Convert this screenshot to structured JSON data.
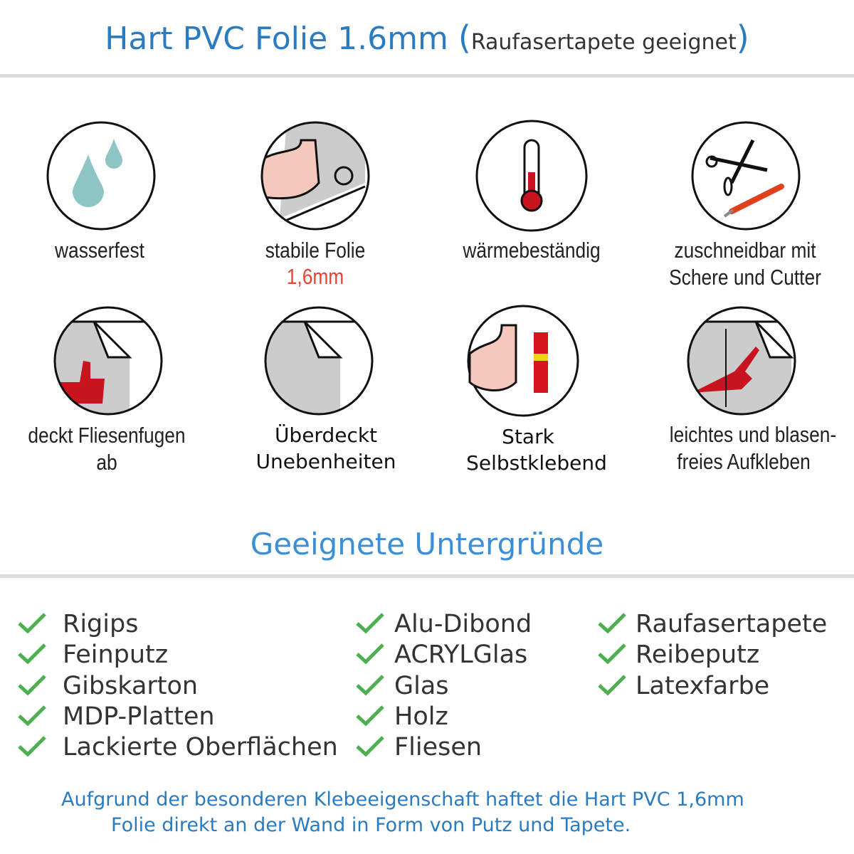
{
  "header": {
    "title_main": "Hart PVC Folie 1.6mm ",
    "paren_open": "(",
    "title_sub": "Raufasertapete geeignet",
    "paren_close": ")"
  },
  "features": [
    {
      "icon": "water-drops-icon",
      "label": "wasserfest"
    },
    {
      "icon": "strong-arm-foil-icon",
      "label": "stabile Folie",
      "sublabel": "1,6mm"
    },
    {
      "icon": "thermometer-icon",
      "label": "wärmebeständig"
    },
    {
      "icon": "scissors-cutter-icon",
      "label_line1": "zuschneidbar mit",
      "label_line2": "Schere und Cutter"
    },
    {
      "icon": "tile-thumbs-up-icon",
      "label": "deckt Fliesenfugen ab"
    },
    {
      "icon": "foil-corner-icon",
      "label_line1": "Überdeckt",
      "label_line2": "Unebenheiten"
    },
    {
      "icon": "strong-arm-glue-icon",
      "label_line1": "Stark",
      "label_line2": "Selbstklebend"
    },
    {
      "icon": "hand-apply-icon",
      "label_line1": "leichtes und blasen-",
      "label_line2": "freies Aufkleben"
    }
  ],
  "colors": {
    "accent": "#2a7bc0",
    "check": "#4caf50",
    "highlight": "#e8423a"
  },
  "surfaces": {
    "title": "Geeignete Untergründe",
    "col1": [
      "Rigips",
      "Feinputz",
      "Gibskarton",
      "MDP-Platten",
      "Lackierte Oberflächen"
    ],
    "col2": [
      "Alu-Dibond",
      "ACRYLGlas",
      "Glas",
      "Holz",
      "Fliesen"
    ],
    "col3": [
      "Raufasertapete",
      "Reibeputz",
      "Latexfarbe"
    ]
  },
  "footer": {
    "line1": "Aufgrund der besonderen Klebeeigenschaft haftet die Hart PVC 1,6mm",
    "line2": "Folie direkt an der Wand in Form von Putz und Tapete."
  }
}
